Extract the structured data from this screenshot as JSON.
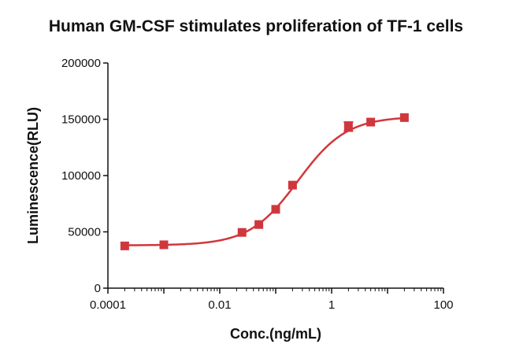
{
  "chart_data": {
    "type": "scatter",
    "title": "Human GM-CSF stimulates proliferation of TF-1 cells",
    "xlabel": "Conc.(ng/mL)",
    "ylabel": "Luminescence(RLU)",
    "x_scale": "log",
    "xlim": [
      0.0001,
      100
    ],
    "ylim": [
      0,
      200000
    ],
    "x_ticks": [
      0.0001,
      0.01,
      1,
      100
    ],
    "x_tick_labels": [
      "0.0001",
      "0.01",
      "1",
      "100"
    ],
    "y_ticks": [
      0,
      50000,
      100000,
      150000,
      200000
    ],
    "y_tick_labels": [
      "0",
      "50000",
      "100000",
      "150000",
      "200000"
    ],
    "grid": false,
    "series": [
      {
        "points": [
          {
            "x": 0.0002,
            "y": 37500
          },
          {
            "x": 0.001,
            "y": 38500
          },
          {
            "x": 0.025,
            "y": 49500
          },
          {
            "x": 0.05,
            "y": 56500
          },
          {
            "x": 0.1,
            "y": 70000
          },
          {
            "x": 0.2,
            "y": 91500
          },
          {
            "x": 2.0,
            "y": 143500,
            "y_error": 4000
          },
          {
            "x": 5.0,
            "y": 147500
          },
          {
            "x": 20.0,
            "y": 151500
          }
        ],
        "fit": {
          "bottom": 38000,
          "top": 152500,
          "ec50": 0.25,
          "hill": 1.0
        }
      }
    ],
    "colors": {
      "series": "#d0373c",
      "axis": "#111111"
    }
  }
}
